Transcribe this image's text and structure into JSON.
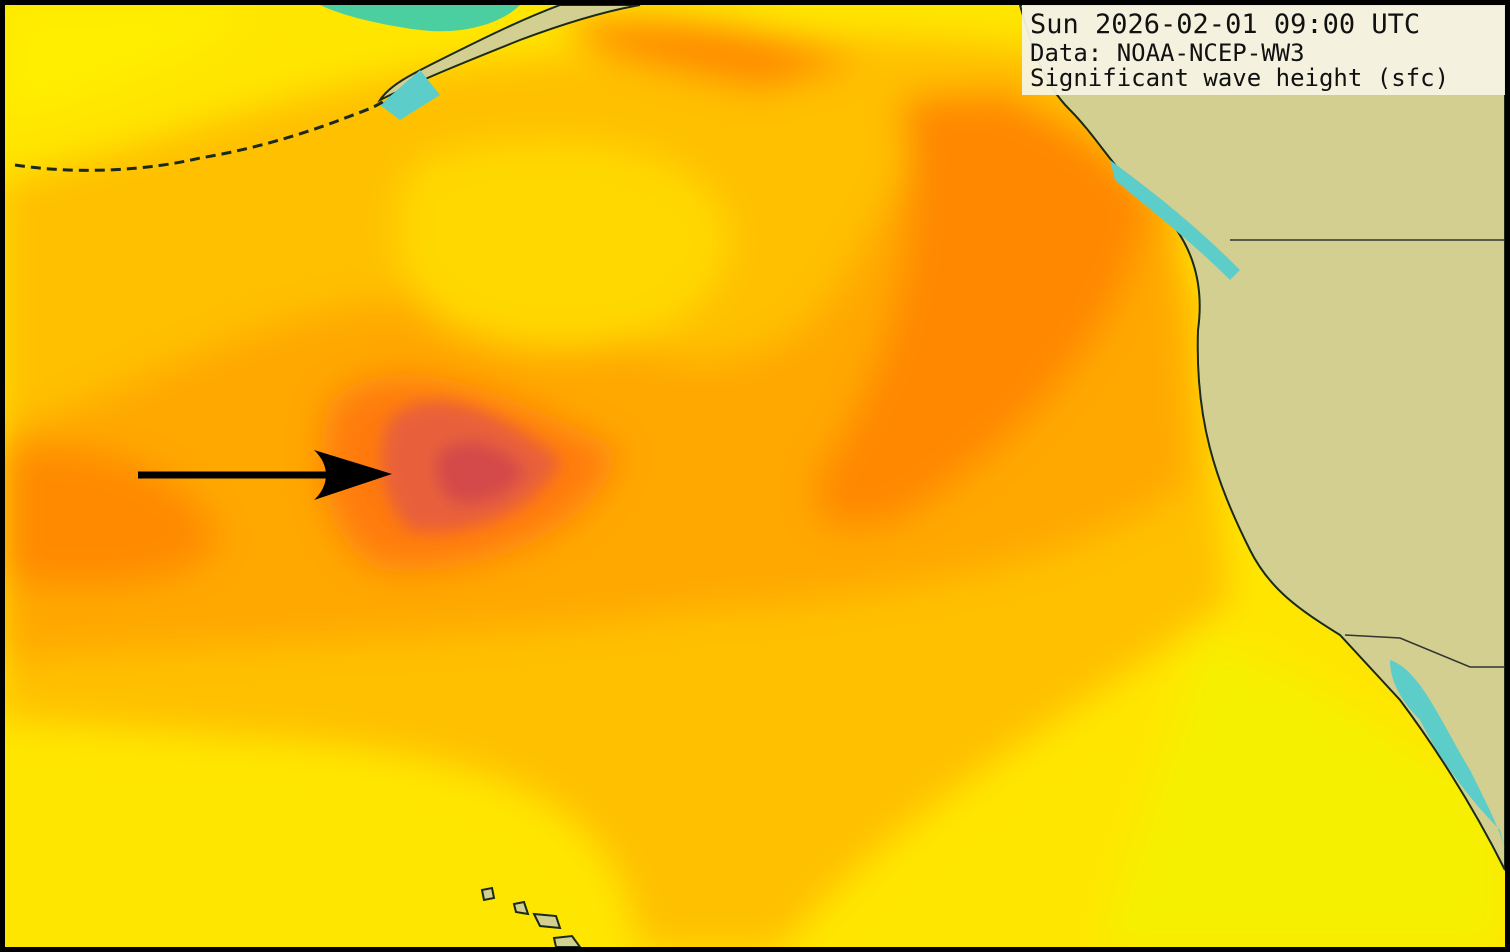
{
  "header": {
    "timestamp": "Sun 2026-02-01 09:00 UTC",
    "source": "Data: NOAA-NCEP-WW3",
    "field": "Significant wave height (sfc)"
  }
}
